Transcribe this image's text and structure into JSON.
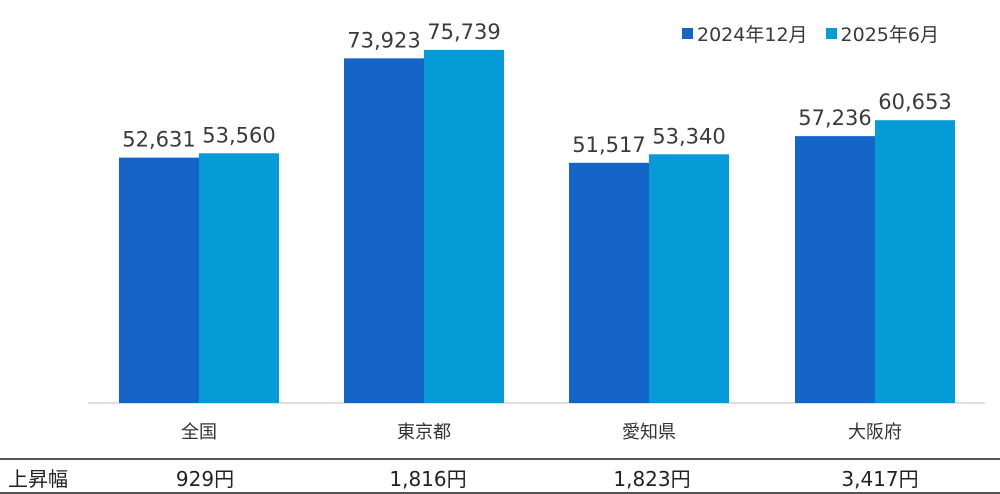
{
  "chart_data": {
    "type": "bar",
    "categories": [
      "全国",
      "東京都",
      "愛知県",
      "大阪府"
    ],
    "series": [
      {
        "name": "2024年12月",
        "values": [
          52631,
          73923,
          51517,
          57236
        ],
        "labels": [
          "52,631",
          "73,923",
          "51,517",
          "57,236"
        ],
        "color": "#1565c8"
      },
      {
        "name": "2025年6月",
        "values": [
          53560,
          75739,
          53340,
          60653
        ],
        "labels": [
          "53,560",
          "75,739",
          "53,340",
          "60,653"
        ],
        "color": "#059bd6"
      }
    ],
    "ylim": [
      0,
      80000
    ],
    "legend_position": "top-right",
    "grid": false
  },
  "rise_row": {
    "label": "上昇幅",
    "values": [
      "929円",
      "1,816円",
      "1,823円",
      "3,417円"
    ]
  }
}
